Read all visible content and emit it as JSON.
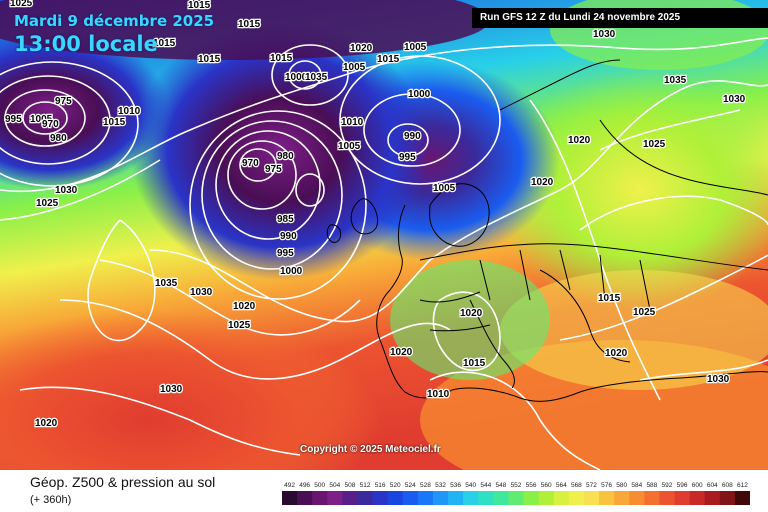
{
  "header": {
    "date": "Mardi 9 décembre 2025",
    "hour": "13:00 locale",
    "run": "Run GFS 12 Z du Lundi 24 novembre 2025"
  },
  "footer": {
    "title": "Géop. Z500 & pression au sol",
    "subtitle": "(+ 360h)",
    "copyright": "Copyright © 2025 Meteociel.fr"
  },
  "legend": {
    "values": [
      "492",
      "496",
      "500",
      "504",
      "508",
      "512",
      "516",
      "520",
      "524",
      "528",
      "532",
      "536",
      "540",
      "544",
      "548",
      "552",
      "556",
      "560",
      "564",
      "568",
      "572",
      "576",
      "580",
      "584",
      "588",
      "592",
      "596",
      "600",
      "604",
      "608",
      "612"
    ],
    "colors": [
      "#2a0a2e",
      "#4a0e55",
      "#6a1670",
      "#7d1f87",
      "#5a1e8a",
      "#3a2a9c",
      "#2a34c8",
      "#1a46e0",
      "#1a5cf0",
      "#1a78f8",
      "#2096f8",
      "#20b4f4",
      "#28d0e8",
      "#30e0c4",
      "#40e89c",
      "#60ec70",
      "#88f048",
      "#b0f038",
      "#d8f040",
      "#f0f04c",
      "#f8e050",
      "#f8c440",
      "#f8a838",
      "#f88c30",
      "#f47030",
      "#ec5430",
      "#e03c30",
      "#c82828",
      "#a81c20",
      "#801418",
      "#400808"
    ]
  },
  "map": {
    "isobar_labels": [
      "1025",
      "1015",
      "1015",
      "1015",
      "1015",
      "1015",
      "1015",
      "1020",
      "1005",
      "1030",
      "975",
      "995",
      "1005",
      "970",
      "980",
      "1010",
      "1015",
      "1005",
      "1000",
      "990",
      "995",
      "1000",
      "1005",
      "1005",
      "1035",
      "1010",
      "1020",
      "970",
      "975",
      "980",
      "985",
      "990",
      "995",
      "1000",
      "1035",
      "1030",
      "1020",
      "1025",
      "1030",
      "1025",
      "1035",
      "1030",
      "1020",
      "1020",
      "1025",
      "1020",
      "1015",
      "1010",
      "1015",
      "1020",
      "1030",
      "1020",
      "1025",
      "1030"
    ]
  }
}
